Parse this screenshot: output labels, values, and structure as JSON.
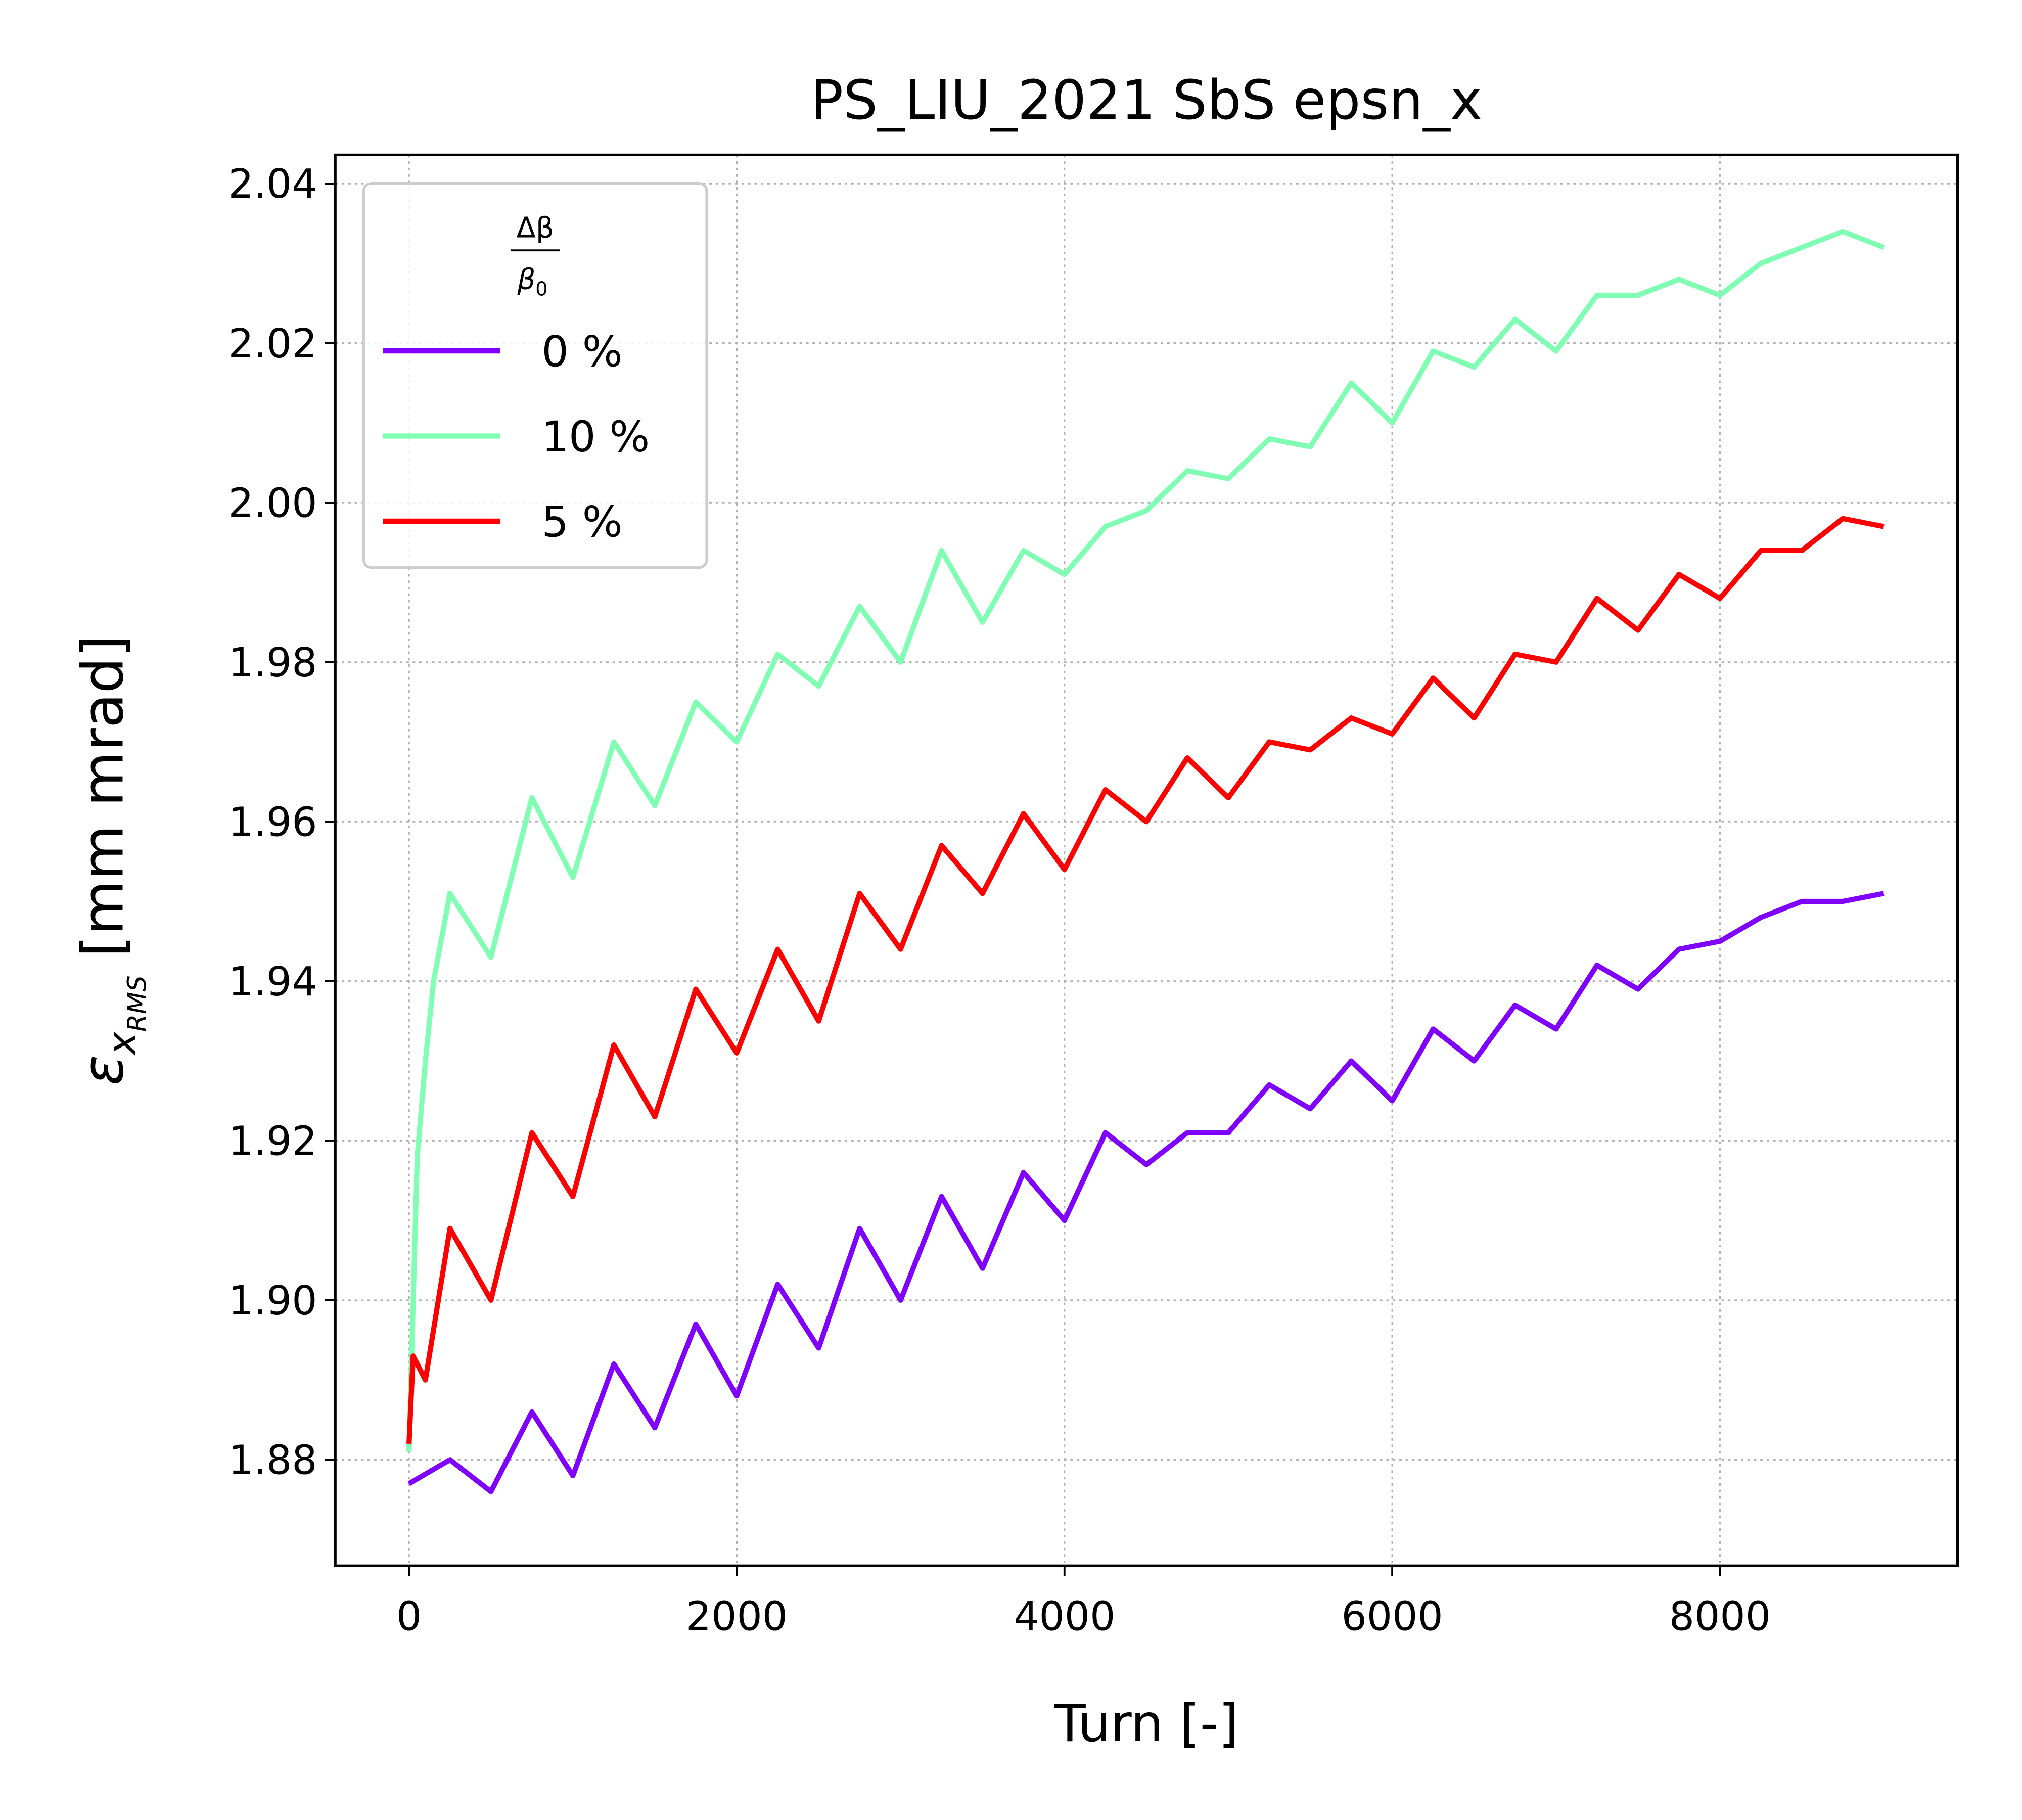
{
  "chart_data": {
    "type": "line",
    "title": "PS_LIU_2021 SbS epsn_x",
    "x_label": "Turn [-]",
    "y_label": {
      "symbol": "ε",
      "sub": "x",
      "subsub": "RMS",
      "unit": "[mm mrad]"
    },
    "legend_title": {
      "numerator": "Δβ",
      "denominator": "β",
      "denominator_sub": "0"
    },
    "legend_position": "upper left",
    "grid": true,
    "xlim": [
      -450,
      9450
    ],
    "ylim": [
      1.8667,
      2.0436
    ],
    "xticks": [
      0,
      2000,
      4000,
      6000,
      8000
    ],
    "yticks": [
      1.88,
      {
        "value": 1.9,
        "label": "1.90"
      },
      1.92,
      1.94,
      1.96,
      1.98,
      {
        "value": 2,
        "label": "2.00"
      },
      2.02,
      2.04
    ],
    "series": [
      {
        "name": "0 %",
        "color": "#8000ff",
        "x": [
          0,
          250,
          500,
          750,
          1000,
          1250,
          1500,
          1750,
          2000,
          2250,
          2500,
          2750,
          3000,
          3250,
          3500,
          3750,
          4000,
          4250,
          4500,
          4750,
          5000,
          5250,
          5500,
          5750,
          6000,
          6250,
          6500,
          6750,
          7000,
          7250,
          7500,
          7750,
          8000,
          8250,
          8500,
          8750,
          9000
        ],
        "values": [
          1.877,
          1.88,
          1.876,
          1.886,
          1.878,
          1.892,
          1.884,
          1.897,
          1.888,
          1.902,
          1.894,
          1.909,
          1.9,
          1.913,
          1.904,
          1.916,
          1.91,
          1.921,
          1.917,
          1.921,
          1.921,
          1.927,
          1.924,
          1.93,
          1.925,
          1.934,
          1.93,
          1.937,
          1.934,
          1.942,
          1.939,
          1.944,
          1.945,
          1.948,
          1.95,
          1.95,
          1.951
        ]
      },
      {
        "name": "10 %",
        "color": "#80ffb4",
        "x": [
          0,
          50,
          100,
          150,
          250,
          500,
          750,
          1000,
          1250,
          1500,
          1750,
          2000,
          2250,
          2500,
          2750,
          3000,
          3250,
          3500,
          3750,
          4000,
          4250,
          4500,
          4750,
          5000,
          5250,
          5500,
          5750,
          6000,
          6250,
          6500,
          6750,
          7000,
          7250,
          7500,
          7750,
          8000,
          8250,
          8500,
          8750,
          9000
        ],
        "values": [
          1.881,
          1.918,
          1.93,
          1.94,
          1.951,
          1.943,
          1.963,
          1.953,
          1.97,
          1.962,
          1.975,
          1.97,
          1.981,
          1.977,
          1.987,
          1.98,
          1.994,
          1.985,
          1.994,
          1.991,
          1.997,
          1.999,
          2.004,
          2.003,
          2.008,
          2.007,
          2.015,
          2.01,
          2.019,
          2.017,
          2.023,
          2.019,
          2.026,
          2.026,
          2.028,
          2.026,
          2.03,
          2.032,
          2.034,
          2.032
        ]
      },
      {
        "name": "5 %",
        "color": "#ff0000",
        "x": [
          0,
          25,
          100,
          250,
          500,
          750,
          1000,
          1250,
          1500,
          1750,
          2000,
          2250,
          2500,
          2750,
          3000,
          3250,
          3500,
          3750,
          4000,
          4250,
          4500,
          4750,
          5000,
          5250,
          5500,
          5750,
          6000,
          6250,
          6500,
          6750,
          7000,
          7250,
          7500,
          7750,
          8000,
          8250,
          8500,
          8750,
          9000
        ],
        "values": [
          1.882,
          1.893,
          1.89,
          1.909,
          1.9,
          1.921,
          1.913,
          1.932,
          1.923,
          1.939,
          1.931,
          1.944,
          1.935,
          1.951,
          1.944,
          1.957,
          1.951,
          1.961,
          1.954,
          1.964,
          1.96,
          1.968,
          1.963,
          1.97,
          1.969,
          1.973,
          1.971,
          1.978,
          1.973,
          1.981,
          1.98,
          1.988,
          1.984,
          1.991,
          1.988,
          1.994,
          1.994,
          1.998,
          1.997
        ]
      }
    ]
  }
}
